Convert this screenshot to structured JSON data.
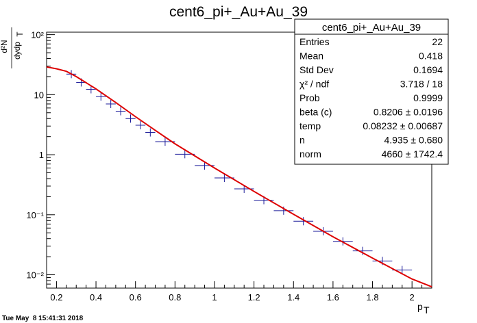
{
  "canvas": {
    "title": "cent6_pi+_Au+Au_39",
    "timestamp": "Tue May  8 15:41:31 2018"
  },
  "stats_box": {
    "title": "cent6_pi+_Au+Au_39",
    "rows": [
      {
        "label": "Entries",
        "value": "22"
      },
      {
        "label": "Mean",
        "value": "0.418"
      },
      {
        "label": "Std Dev",
        "value": "0.1694"
      },
      {
        "label": "χ² / ndf",
        "value": "3.718 / 18"
      },
      {
        "label": "Prob",
        "value": "0.9999"
      },
      {
        "label": "beta (c)",
        "value": "0.8206 ± 0.0196"
      },
      {
        "label": "temp",
        "value": "0.08232 ± 0.00687"
      },
      {
        "label": "n",
        "value": "4.935 ± 0.680"
      },
      {
        "label": "norm",
        "value": "4660 ± 1742.4"
      }
    ]
  },
  "colors": {
    "data_markers": "#1a1a99",
    "fit_line": "#dd0000",
    "frame": "#000000"
  },
  "chart_data": {
    "type": "scatter",
    "title": "cent6_pi+_Au+Au_39",
    "xlabel": "p",
    "xlabel_sub": "T",
    "ylabel_num": "d²N",
    "ylabel_den": "dydp",
    "ylabel_den_sub": "T",
    "xlim": [
      0.15,
      2.1
    ],
    "ylim": [
      0.006,
      110
    ],
    "yscale": "log",
    "grid": false,
    "x_ticks": [
      "0.2",
      "0.4",
      "0.6",
      "0.8",
      "1",
      "1.2",
      "1.4",
      "1.6",
      "1.8",
      "2"
    ],
    "y_ticks": [
      "10⁻²",
      "10⁻¹",
      "1",
      "10",
      "10²"
    ],
    "series": [
      {
        "kind": "data",
        "x": [
          0.275,
          0.325,
          0.375,
          0.425,
          0.475,
          0.525,
          0.575,
          0.625,
          0.675,
          0.75,
          0.85,
          0.95,
          1.05,
          1.15,
          1.25,
          1.35,
          1.45,
          1.55,
          1.65,
          1.75,
          1.85,
          1.95
        ],
        "xerr": [
          0.025,
          0.025,
          0.025,
          0.025,
          0.025,
          0.025,
          0.025,
          0.025,
          0.025,
          0.05,
          0.05,
          0.05,
          0.05,
          0.05,
          0.05,
          0.05,
          0.05,
          0.05,
          0.05,
          0.05,
          0.05,
          0.05
        ],
        "y": [
          22,
          16,
          12.3,
          9.3,
          7.0,
          5.3,
          4.0,
          3.1,
          2.35,
          1.65,
          1.02,
          0.66,
          0.41,
          0.27,
          0.175,
          0.117,
          0.078,
          0.053,
          0.036,
          0.025,
          0.017,
          0.012
        ]
      },
      {
        "kind": "fit",
        "x": [
          0.15,
          0.2,
          0.25,
          0.3,
          0.4,
          0.5,
          0.6,
          0.7,
          0.8,
          1.0,
          1.2,
          1.4,
          1.6,
          1.8,
          2.0,
          2.1
        ],
        "y": [
          29,
          27,
          24.5,
          20,
          12.5,
          7.4,
          4.3,
          2.55,
          1.52,
          0.6,
          0.245,
          0.102,
          0.043,
          0.019,
          0.0085,
          0.0063
        ]
      }
    ]
  }
}
